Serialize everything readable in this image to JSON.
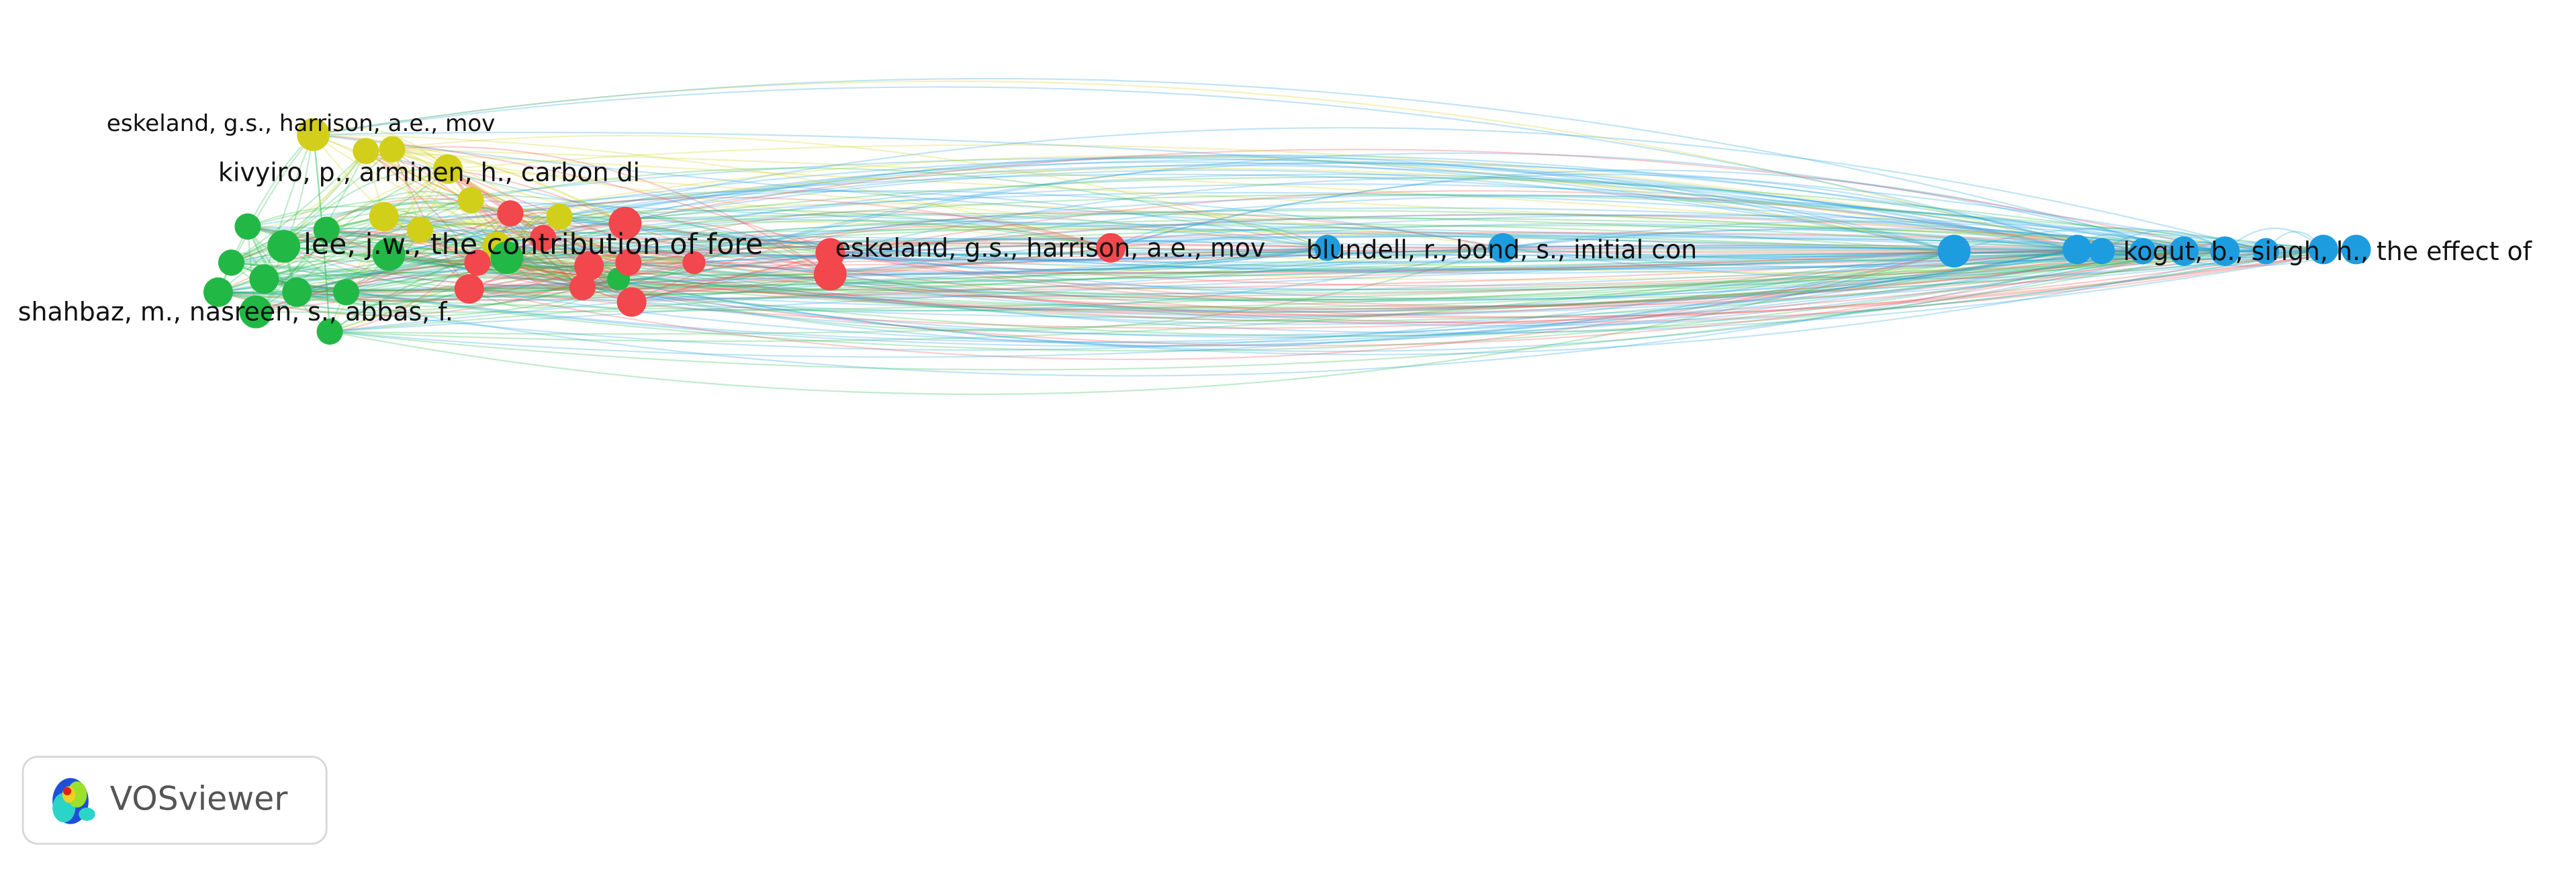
{
  "labels": [
    "eskeland, g.s., harrison, a.e., mov",
    "kivyiro, p., arminen, h., carbon di",
    "lee, j.w., the contribution of fore",
    "shahbaz, m., nasreen, s., abbas, f.",
    "eskeland, g.s., harrison, a.e., mov",
    "blundell, r., bond, s., initial con",
    "kogut, b., singh, h., the effect of"
  ],
  "logo": {
    "text": "VOSviewer"
  }
}
